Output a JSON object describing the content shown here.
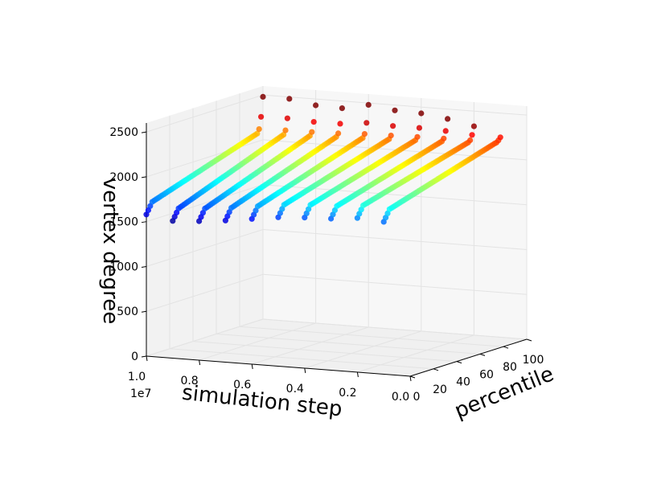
{
  "chart_data": {
    "type": "scatter",
    "projection": "3d",
    "xlabel": "simulation step",
    "ylabel": "percentile",
    "zlabel": "vertex degree",
    "x_offset_label": "1e7",
    "x_ticks": [
      {
        "value": 1.0,
        "label": "1.0"
      },
      {
        "value": 0.8,
        "label": "0.8"
      },
      {
        "value": 0.6,
        "label": "0.6"
      },
      {
        "value": 0.4,
        "label": "0.4"
      },
      {
        "value": 0.2,
        "label": "0.2"
      },
      {
        "value": 0.0,
        "label": "0.0"
      }
    ],
    "y_ticks": [
      {
        "value": 0,
        "label": "0"
      },
      {
        "value": 20,
        "label": "20"
      },
      {
        "value": 40,
        "label": "40"
      },
      {
        "value": 60,
        "label": "60"
      },
      {
        "value": 80,
        "label": "80"
      },
      {
        "value": 100,
        "label": "100"
      }
    ],
    "z_ticks": [
      {
        "value": 0,
        "label": "0"
      },
      {
        "value": 500,
        "label": "500"
      },
      {
        "value": 1000,
        "label": "1000"
      },
      {
        "value": 1500,
        "label": "1500"
      },
      {
        "value": 2000,
        "label": "2000"
      },
      {
        "value": 2500,
        "label": "2500"
      }
    ],
    "xlim": [
      0,
      10000000
    ],
    "ylim": [
      0,
      100
    ],
    "zlim": [
      0,
      2600
    ],
    "grid": true,
    "colormap": "jet",
    "color_by": "vertex degree",
    "series": [
      {
        "step": 1000000,
        "degree_min": 1700,
        "degree_max": 2180,
        "tail_max": 2230
      },
      {
        "step": 2000000,
        "degree_min": 1720,
        "degree_max": 2170,
        "tail_max": 2330
      },
      {
        "step": 3000000,
        "degree_min": 1690,
        "degree_max": 2160,
        "tail_max": 2390
      },
      {
        "step": 4000000,
        "degree_min": 1680,
        "degree_max": 2150,
        "tail_max": 2430
      },
      {
        "step": 5000000,
        "degree_min": 1660,
        "degree_max": 2140,
        "tail_max": 2440
      },
      {
        "step": 6000000,
        "degree_min": 1620,
        "degree_max": 2130,
        "tail_max": 2480
      },
      {
        "step": 7000000,
        "degree_min": 1580,
        "degree_max": 2120,
        "tail_max": 2420
      },
      {
        "step": 8000000,
        "degree_min": 1550,
        "degree_max": 2110,
        "tail_max": 2430
      },
      {
        "step": 9000000,
        "degree_min": 1530,
        "degree_max": 2100,
        "tail_max": 2480
      },
      {
        "step": 10000000,
        "degree_min": 1580,
        "degree_max": 2090,
        "tail_max": 2480
      }
    ]
  }
}
